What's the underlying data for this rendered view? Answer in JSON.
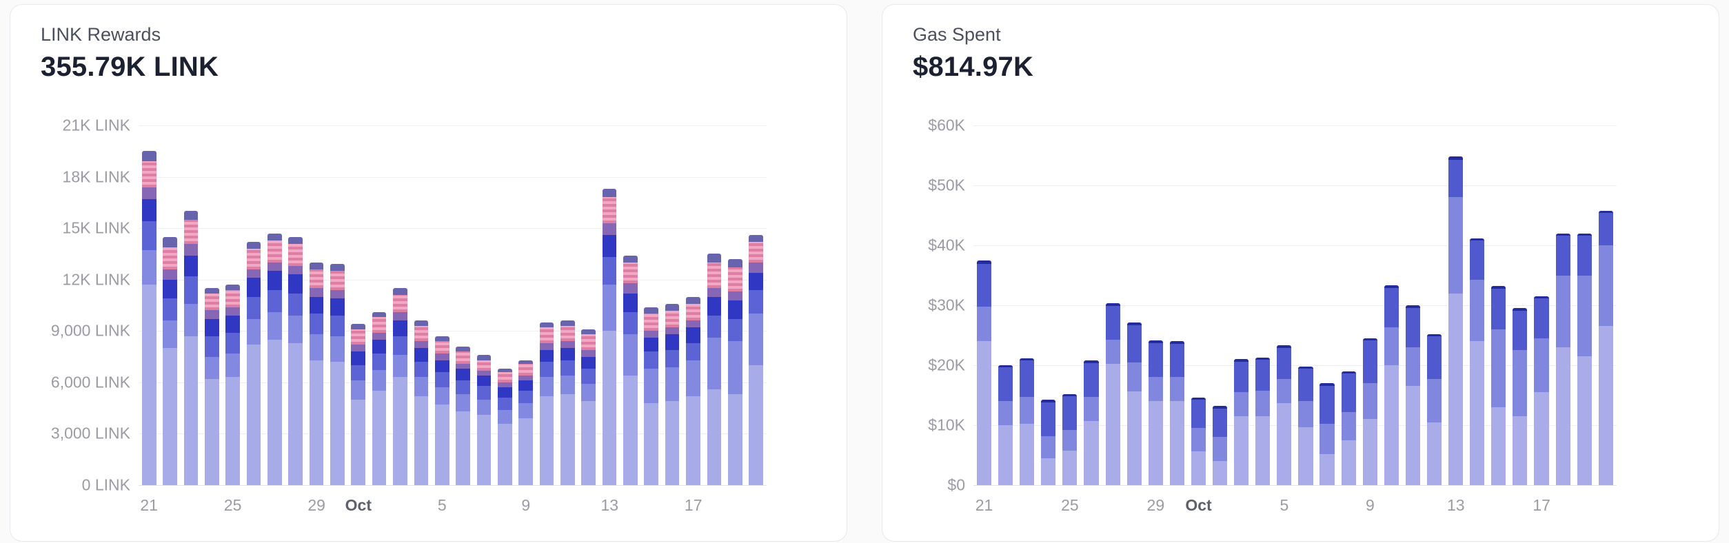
{
  "page": {
    "background": "#fafafb",
    "card_background": "#ffffff",
    "card_border": "#e8e8ee"
  },
  "cards": [
    {
      "title": "LINK Rewards",
      "value": "355.79K LINK",
      "chart_data": {
        "type": "bar",
        "stacked": true,
        "title": "LINK Rewards",
        "xlabel": "",
        "ylabel": "LINK",
        "unit": "LINK",
        "grid": true,
        "legend": "none",
        "ylim": [
          0,
          21000
        ],
        "y_ticks": [
          {
            "value": 21000,
            "label": "21K LINK"
          },
          {
            "value": 18000,
            "label": "18K LINK"
          },
          {
            "value": 15000,
            "label": "15K LINK"
          },
          {
            "value": 12000,
            "label": "12K LINK"
          },
          {
            "value": 9000,
            "label": "9,000 LINK"
          },
          {
            "value": 6000,
            "label": "6,000 LINK"
          },
          {
            "value": 3000,
            "label": "3,000 LINK"
          },
          {
            "value": 0,
            "label": "0 LINK"
          }
        ],
        "x": [
          "Sep 21",
          "Sep 22",
          "Sep 23",
          "Sep 24",
          "Sep 25",
          "Sep 26",
          "Sep 27",
          "Sep 28",
          "Sep 29",
          "Sep 30",
          "Oct 1",
          "Oct 2",
          "Oct 3",
          "Oct 4",
          "Oct 5",
          "Oct 6",
          "Oct 7",
          "Oct 8",
          "Oct 9",
          "Oct 10",
          "Oct 11",
          "Oct 12",
          "Oct 13",
          "Oct 14",
          "Oct 15",
          "Oct 16",
          "Oct 17",
          "Oct 18",
          "Oct 19",
          "Oct 20"
        ],
        "x_ticks": [
          {
            "i": 0,
            "label": "21",
            "bold": false
          },
          {
            "i": 4,
            "label": "25",
            "bold": false
          },
          {
            "i": 8,
            "label": "29",
            "bold": false
          },
          {
            "i": 10,
            "label": "Oct",
            "bold": true
          },
          {
            "i": 14,
            "label": "5",
            "bold": false
          },
          {
            "i": 18,
            "label": "9",
            "bold": false
          },
          {
            "i": 22,
            "label": "13",
            "bold": false
          },
          {
            "i": 26,
            "label": "17",
            "bold": false
          }
        ],
        "series": [
          {
            "name": "stack-1-lavender",
            "color": "#a7abe8",
            "values": [
              11700,
              8000,
              8700,
              6200,
              6300,
              8200,
              8500,
              8300,
              7300,
              7200,
              5000,
              5500,
              6300,
              5200,
              4700,
              4300,
              4100,
              3600,
              3900,
              5200,
              5300,
              4900,
              9000,
              6400,
              4800,
              4900,
              5200,
              5600,
              5300,
              7000
            ]
          },
          {
            "name": "stack-2-periwinkle",
            "color": "#8389e0",
            "values": [
              2000,
              1600,
              1900,
              1300,
              1400,
              1500,
              1600,
              1600,
              1500,
              1500,
              1100,
              1200,
              1300,
              1100,
              1000,
              1000,
              900,
              800,
              900,
              1100,
              1100,
              1000,
              2700,
              2400,
              2000,
              2000,
              2100,
              3000,
              3100,
              3000
            ]
          },
          {
            "name": "stack-3-medium-blue",
            "color": "#5c63d5",
            "values": [
              1700,
              1300,
              1600,
              1200,
              1200,
              1300,
              1300,
              1300,
              1200,
              1200,
              900,
              1000,
              1100,
              900,
              900,
              800,
              800,
              700,
              700,
              900,
              900,
              900,
              1600,
              1300,
              1000,
              1000,
              1000,
              1300,
              1300,
              1400
            ]
          },
          {
            "name": "stack-4-dark-blue",
            "color": "#3038c3",
            "values": [
              1300,
              1100,
              1200,
              1000,
              1000,
              1100,
              1100,
              1100,
              1000,
              1000,
              800,
              800,
              900,
              800,
              700,
              700,
              600,
              600,
              600,
              700,
              700,
              700,
              1300,
              1100,
              800,
              900,
              900,
              1100,
              1100,
              1000
            ]
          },
          {
            "name": "stack-5-mauve",
            "color": "#8666b5",
            "values": [
              700,
              600,
              700,
              500,
              500,
              500,
              500,
              500,
              500,
              500,
              400,
              400,
              500,
              400,
              400,
              300,
              300,
              300,
              300,
              400,
              400,
              400,
              700,
              600,
              400,
              400,
              400,
              500,
              500,
              600
            ]
          },
          {
            "name": "stack-6-pink-striped",
            "color": "#e07fa5",
            "striped": true,
            "stripe_colors": [
              "#df7ea4",
              "#f2a7c2"
            ],
            "values": [
              1500,
              1300,
              1400,
              1000,
              1000,
              1200,
              1300,
              1300,
              1100,
              1100,
              900,
              900,
              1000,
              900,
              700,
              700,
              600,
              600,
              700,
              900,
              900,
              900,
              1500,
              1200,
              1000,
              1000,
              1000,
              1500,
              1400,
              1200
            ]
          },
          {
            "name": "stack-7-slate-cap",
            "color": "#6763ad",
            "values": [
              600,
              600,
              500,
              300,
              300,
              400,
              400,
              400,
              400,
              400,
              300,
              300,
              400,
              300,
              300,
              300,
              300,
              200,
              200,
              300,
              300,
              300,
              500,
              400,
              400,
              400,
              400,
              500,
              500,
              400
            ]
          }
        ]
      }
    },
    {
      "title": "Gas Spent",
      "value": "$814.97K",
      "chart_data": {
        "type": "bar",
        "stacked": true,
        "title": "Gas Spent",
        "xlabel": "",
        "ylabel": "USD",
        "unit": "USD",
        "grid": true,
        "legend": "none",
        "ylim": [
          0,
          60000
        ],
        "y_ticks": [
          {
            "value": 60000,
            "label": "$60K"
          },
          {
            "value": 50000,
            "label": "$50K"
          },
          {
            "value": 40000,
            "label": "$40K"
          },
          {
            "value": 30000,
            "label": "$30K"
          },
          {
            "value": 20000,
            "label": "$20K"
          },
          {
            "value": 10000,
            "label": "$10K"
          },
          {
            "value": 0,
            "label": "$0"
          }
        ],
        "x": [
          "Sep 21",
          "Sep 22",
          "Sep 23",
          "Sep 24",
          "Sep 25",
          "Sep 26",
          "Sep 27",
          "Sep 28",
          "Sep 29",
          "Sep 30",
          "Oct 1",
          "Oct 2",
          "Oct 3",
          "Oct 4",
          "Oct 5",
          "Oct 6",
          "Oct 7",
          "Oct 8",
          "Oct 9",
          "Oct 10",
          "Oct 11",
          "Oct 12",
          "Oct 13",
          "Oct 14",
          "Oct 15",
          "Oct 16",
          "Oct 17",
          "Oct 18",
          "Oct 19",
          "Oct 20"
        ],
        "x_ticks": [
          {
            "i": 0,
            "label": "21",
            "bold": false
          },
          {
            "i": 4,
            "label": "25",
            "bold": false
          },
          {
            "i": 8,
            "label": "29",
            "bold": false
          },
          {
            "i": 10,
            "label": "Oct",
            "bold": true
          },
          {
            "i": 14,
            "label": "5",
            "bold": false
          },
          {
            "i": 18,
            "label": "9",
            "bold": false
          },
          {
            "i": 22,
            "label": "13",
            "bold": false
          },
          {
            "i": 26,
            "label": "17",
            "bold": false
          }
        ],
        "series": [
          {
            "name": "stack-1-lavender",
            "color": "#a9ace9",
            "values": [
              24000,
              10000,
              10200,
              4500,
              5700,
              10700,
              20200,
              15600,
              14000,
              14000,
              5600,
              4000,
              11500,
              11500,
              13700,
              9600,
              5200,
              7500,
              11000,
              20000,
              16500,
              10500,
              32000,
              24000,
              13000,
              11500,
              15500,
              23000,
              21500,
              26500
            ]
          },
          {
            "name": "stack-2-periwinkle",
            "color": "#8187de",
            "values": [
              5800,
              4000,
              4500,
              3700,
              3500,
              4000,
              4100,
              4900,
              4000,
              4000,
              3900,
              4000,
              4000,
              4300,
              4000,
              4400,
              5000,
              4700,
              6000,
              6300,
              6500,
              7200,
              16000,
              10200,
              13000,
              11000,
              9000,
              12000,
              13500,
              13500
            ]
          },
          {
            "name": "stack-3-dark-periwinkle",
            "color": "#5059cd",
            "values": [
              7100,
              5600,
              6100,
              5600,
              5600,
              5700,
              5600,
              6200,
              5700,
              5600,
              4700,
              4800,
              5100,
              5100,
              5200,
              5400,
              6400,
              6400,
              7100,
              6600,
              6600,
              7100,
              6300,
              6600,
              6800,
              6600,
              6600,
              6600,
              6600,
              5400
            ]
          },
          {
            "name": "stack-4-navy-cap",
            "color": "#242b9b",
            "values": [
              600,
              400,
              400,
              400,
              400,
              400,
              400,
              400,
              400,
              400,
              400,
              400,
              400,
              400,
              400,
              400,
              400,
              400,
              400,
              400,
              400,
              400,
              500,
              400,
              400,
              400,
              400,
              400,
              400,
              400
            ]
          }
        ]
      }
    }
  ]
}
